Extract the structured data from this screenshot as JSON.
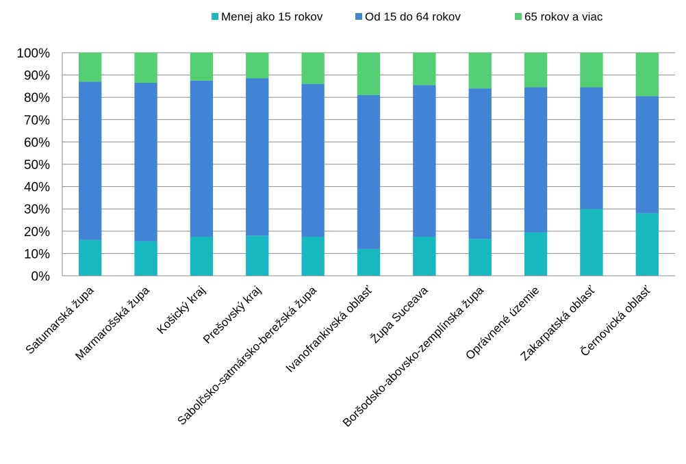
{
  "chart_data": {
    "type": "bar",
    "stacked": true,
    "percent_stacked": true,
    "title": "",
    "xlabel": "",
    "ylabel": "",
    "ylim": [
      0,
      100
    ],
    "y_tick_labels": [
      "0%",
      "10%",
      "20%",
      "30%",
      "40%",
      "50%",
      "60%",
      "70%",
      "80%",
      "90%",
      "100%"
    ],
    "grid": true,
    "legend_position": "top",
    "categories": [
      "Satumarská župa",
      "Marmarošská župa",
      "Košický kraj",
      "Prešovský kraj",
      "Sabolčsko-satmársko-berežská župa",
      "Ivanofrankivská oblasť",
      "Župa Suceava",
      "Boršodsko-abovsko-zemplínska župa",
      "Oprávnené územie",
      "Zakarpatská oblasť",
      "Černovická oblasť"
    ],
    "series": [
      {
        "name": "Menej ako 15 rokov",
        "color": "#17b8c0",
        "values": [
          16,
          15.5,
          17.5,
          18,
          17.5,
          12,
          17.5,
          16.5,
          19.5,
          30,
          28
        ]
      },
      {
        "name": "Od 15 do 64 rokov",
        "color": "#4184d6",
        "values": [
          71,
          71,
          70,
          70.5,
          68.5,
          69,
          68,
          67.5,
          65,
          54.5,
          52.5
        ]
      },
      {
        "name": "65 rokov a viac",
        "color": "#54cf73",
        "values": [
          13,
          13.5,
          12.5,
          11.5,
          14,
          19,
          14.5,
          16,
          15.5,
          15.5,
          19.5
        ]
      }
    ]
  }
}
